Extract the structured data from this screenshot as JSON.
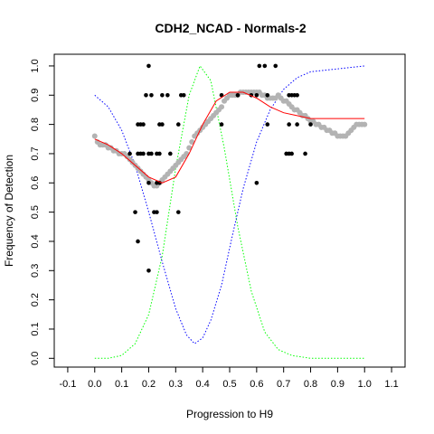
{
  "chart_data": {
    "type": "scatter",
    "title": "CDH2_NCAD - Normals-2",
    "xlabel": "Progression to H9",
    "ylabel": "Frequency of Detection",
    "xlim": [
      -0.15,
      1.15
    ],
    "ylim": [
      -0.03,
      1.04
    ],
    "xticks": [
      "-0.1",
      "0.0",
      "0.1",
      "0.2",
      "0.3",
      "0.4",
      "0.5",
      "0.6",
      "0.7",
      "0.8",
      "0.9",
      "1.0",
      "1.1"
    ],
    "xtick_values": [
      -0.1,
      0.0,
      0.1,
      0.2,
      0.3,
      0.4,
      0.5,
      0.6,
      0.7,
      0.8,
      0.9,
      1.0,
      1.1
    ],
    "yticks": [
      "0.0",
      "0.1",
      "0.2",
      "0.3",
      "0.4",
      "0.5",
      "0.6",
      "0.7",
      "0.8",
      "0.9",
      "1.0"
    ],
    "ytick_values": [
      0.0,
      0.1,
      0.2,
      0.3,
      0.4,
      0.5,
      0.6,
      0.7,
      0.8,
      0.9,
      1.0
    ],
    "grid": false,
    "colors": {
      "points": "#000000",
      "smooth_points": "#b3b3b3",
      "fit_line": "#ff0000",
      "green_curve": "#00ff00",
      "blue_curve": "#0000ff"
    },
    "series": [
      {
        "kind": "points",
        "points": [
          [
            0.2,
            1.0
          ],
          [
            0.61,
            1.0
          ],
          [
            0.63,
            1.0
          ],
          [
            0.67,
            1.0
          ],
          [
            0.19,
            0.9
          ],
          [
            0.21,
            0.9
          ],
          [
            0.25,
            0.9
          ],
          [
            0.27,
            0.9
          ],
          [
            0.32,
            0.9
          ],
          [
            0.33,
            0.9
          ],
          [
            0.47,
            0.9
          ],
          [
            0.53,
            0.9
          ],
          [
            0.58,
            0.9
          ],
          [
            0.6,
            0.9
          ],
          [
            0.64,
            0.9
          ],
          [
            0.72,
            0.9
          ],
          [
            0.73,
            0.9
          ],
          [
            0.74,
            0.9
          ],
          [
            0.75,
            0.9
          ],
          [
            0.16,
            0.8
          ],
          [
            0.17,
            0.8
          ],
          [
            0.18,
            0.8
          ],
          [
            0.24,
            0.8
          ],
          [
            0.25,
            0.8
          ],
          [
            0.31,
            0.8
          ],
          [
            0.47,
            0.8
          ],
          [
            0.64,
            0.8
          ],
          [
            0.72,
            0.8
          ],
          [
            0.75,
            0.8
          ],
          [
            0.8,
            0.8
          ],
          [
            0.13,
            0.7
          ],
          [
            0.16,
            0.7
          ],
          [
            0.17,
            0.7
          ],
          [
            0.18,
            0.7
          ],
          [
            0.2,
            0.7
          ],
          [
            0.21,
            0.7
          ],
          [
            0.23,
            0.7
          ],
          [
            0.24,
            0.7
          ],
          [
            0.28,
            0.7
          ],
          [
            0.71,
            0.7
          ],
          [
            0.72,
            0.7
          ],
          [
            0.73,
            0.7
          ],
          [
            0.78,
            0.7
          ],
          [
            0.2,
            0.6
          ],
          [
            0.23,
            0.6
          ],
          [
            0.24,
            0.6
          ],
          [
            0.6,
            0.6
          ],
          [
            0.15,
            0.5
          ],
          [
            0.22,
            0.5
          ],
          [
            0.23,
            0.5
          ],
          [
            0.31,
            0.5
          ],
          [
            0.16,
            0.4
          ],
          [
            0.2,
            0.3
          ]
        ]
      },
      {
        "kind": "smooth_points",
        "points": [
          [
            0.0,
            0.76
          ],
          [
            0.01,
            0.74
          ],
          [
            0.02,
            0.73
          ],
          [
            0.03,
            0.73
          ],
          [
            0.04,
            0.73
          ],
          [
            0.05,
            0.72
          ],
          [
            0.06,
            0.72
          ],
          [
            0.07,
            0.71
          ],
          [
            0.08,
            0.71
          ],
          [
            0.09,
            0.7
          ],
          [
            0.1,
            0.7
          ],
          [
            0.11,
            0.7
          ],
          [
            0.12,
            0.69
          ],
          [
            0.13,
            0.68
          ],
          [
            0.14,
            0.67
          ],
          [
            0.15,
            0.66
          ],
          [
            0.16,
            0.65
          ],
          [
            0.17,
            0.64
          ],
          [
            0.18,
            0.63
          ],
          [
            0.19,
            0.62
          ],
          [
            0.2,
            0.61
          ],
          [
            0.21,
            0.6
          ],
          [
            0.22,
            0.59
          ],
          [
            0.23,
            0.59
          ],
          [
            0.24,
            0.6
          ],
          [
            0.25,
            0.61
          ],
          [
            0.26,
            0.62
          ],
          [
            0.27,
            0.63
          ],
          [
            0.28,
            0.64
          ],
          [
            0.29,
            0.65
          ],
          [
            0.3,
            0.66
          ],
          [
            0.31,
            0.67
          ],
          [
            0.32,
            0.68
          ],
          [
            0.33,
            0.69
          ],
          [
            0.34,
            0.7
          ],
          [
            0.35,
            0.72
          ],
          [
            0.36,
            0.74
          ],
          [
            0.37,
            0.76
          ],
          [
            0.38,
            0.77
          ],
          [
            0.39,
            0.78
          ],
          [
            0.4,
            0.79
          ],
          [
            0.41,
            0.8
          ],
          [
            0.42,
            0.81
          ],
          [
            0.43,
            0.82
          ],
          [
            0.44,
            0.83
          ],
          [
            0.45,
            0.84
          ],
          [
            0.46,
            0.85
          ],
          [
            0.47,
            0.86
          ],
          [
            0.48,
            0.88
          ],
          [
            0.49,
            0.89
          ],
          [
            0.5,
            0.9
          ],
          [
            0.51,
            0.9
          ],
          [
            0.52,
            0.9
          ],
          [
            0.53,
            0.9
          ],
          [
            0.54,
            0.91
          ],
          [
            0.55,
            0.91
          ],
          [
            0.56,
            0.91
          ],
          [
            0.57,
            0.91
          ],
          [
            0.58,
            0.91
          ],
          [
            0.59,
            0.91
          ],
          [
            0.6,
            0.91
          ],
          [
            0.61,
            0.91
          ],
          [
            0.62,
            0.9
          ],
          [
            0.63,
            0.9
          ],
          [
            0.64,
            0.89
          ],
          [
            0.65,
            0.89
          ],
          [
            0.66,
            0.89
          ],
          [
            0.67,
            0.89
          ],
          [
            0.68,
            0.9
          ],
          [
            0.69,
            0.89
          ],
          [
            0.7,
            0.88
          ],
          [
            0.71,
            0.88
          ],
          [
            0.72,
            0.87
          ],
          [
            0.73,
            0.86
          ],
          [
            0.74,
            0.85
          ],
          [
            0.75,
            0.85
          ],
          [
            0.76,
            0.84
          ],
          [
            0.77,
            0.83
          ],
          [
            0.78,
            0.83
          ],
          [
            0.79,
            0.82
          ],
          [
            0.8,
            0.81
          ],
          [
            0.81,
            0.81
          ],
          [
            0.82,
            0.8
          ],
          [
            0.83,
            0.8
          ],
          [
            0.84,
            0.79
          ],
          [
            0.85,
            0.79
          ],
          [
            0.86,
            0.78
          ],
          [
            0.87,
            0.78
          ],
          [
            0.88,
            0.77
          ],
          [
            0.89,
            0.77
          ],
          [
            0.9,
            0.76
          ],
          [
            0.91,
            0.76
          ],
          [
            0.92,
            0.76
          ],
          [
            0.93,
            0.76
          ],
          [
            0.94,
            0.77
          ],
          [
            0.95,
            0.78
          ],
          [
            0.96,
            0.79
          ],
          [
            0.97,
            0.8
          ],
          [
            0.98,
            0.8
          ],
          [
            0.99,
            0.8
          ],
          [
            1.0,
            0.8
          ]
        ]
      },
      {
        "kind": "fit_line",
        "points": [
          [
            0.0,
            0.75
          ],
          [
            0.05,
            0.73
          ],
          [
            0.1,
            0.7
          ],
          [
            0.15,
            0.66
          ],
          [
            0.2,
            0.62
          ],
          [
            0.25,
            0.6
          ],
          [
            0.3,
            0.62
          ],
          [
            0.35,
            0.7
          ],
          [
            0.4,
            0.8
          ],
          [
            0.45,
            0.88
          ],
          [
            0.5,
            0.91
          ],
          [
            0.55,
            0.91
          ],
          [
            0.6,
            0.89
          ],
          [
            0.65,
            0.86
          ],
          [
            0.7,
            0.84
          ],
          [
            0.75,
            0.83
          ],
          [
            0.8,
            0.82
          ],
          [
            0.85,
            0.82
          ],
          [
            0.9,
            0.82
          ],
          [
            0.95,
            0.82
          ],
          [
            1.0,
            0.82
          ]
        ]
      },
      {
        "kind": "green_curve",
        "points": [
          [
            0.0,
            0.0
          ],
          [
            0.05,
            0.0
          ],
          [
            0.1,
            0.01
          ],
          [
            0.15,
            0.05
          ],
          [
            0.2,
            0.15
          ],
          [
            0.25,
            0.35
          ],
          [
            0.3,
            0.65
          ],
          [
            0.35,
            0.9
          ],
          [
            0.39,
            1.0
          ],
          [
            0.43,
            0.95
          ],
          [
            0.48,
            0.72
          ],
          [
            0.53,
            0.45
          ],
          [
            0.58,
            0.23
          ],
          [
            0.63,
            0.09
          ],
          [
            0.68,
            0.03
          ],
          [
            0.73,
            0.01
          ],
          [
            0.8,
            0.0
          ],
          [
            0.9,
            0.0
          ],
          [
            1.0,
            0.0
          ]
        ]
      },
      {
        "kind": "blue_curve",
        "points": [
          [
            0.0,
            0.9
          ],
          [
            0.05,
            0.86
          ],
          [
            0.1,
            0.78
          ],
          [
            0.15,
            0.66
          ],
          [
            0.2,
            0.5
          ],
          [
            0.25,
            0.33
          ],
          [
            0.3,
            0.17
          ],
          [
            0.34,
            0.08
          ],
          [
            0.37,
            0.05
          ],
          [
            0.4,
            0.07
          ],
          [
            0.43,
            0.13
          ],
          [
            0.47,
            0.25
          ],
          [
            0.51,
            0.42
          ],
          [
            0.55,
            0.58
          ],
          [
            0.6,
            0.74
          ],
          [
            0.65,
            0.85
          ],
          [
            0.7,
            0.92
          ],
          [
            0.75,
            0.96
          ],
          [
            0.8,
            0.98
          ],
          [
            0.9,
            0.99
          ],
          [
            1.0,
            1.0
          ]
        ]
      }
    ]
  }
}
